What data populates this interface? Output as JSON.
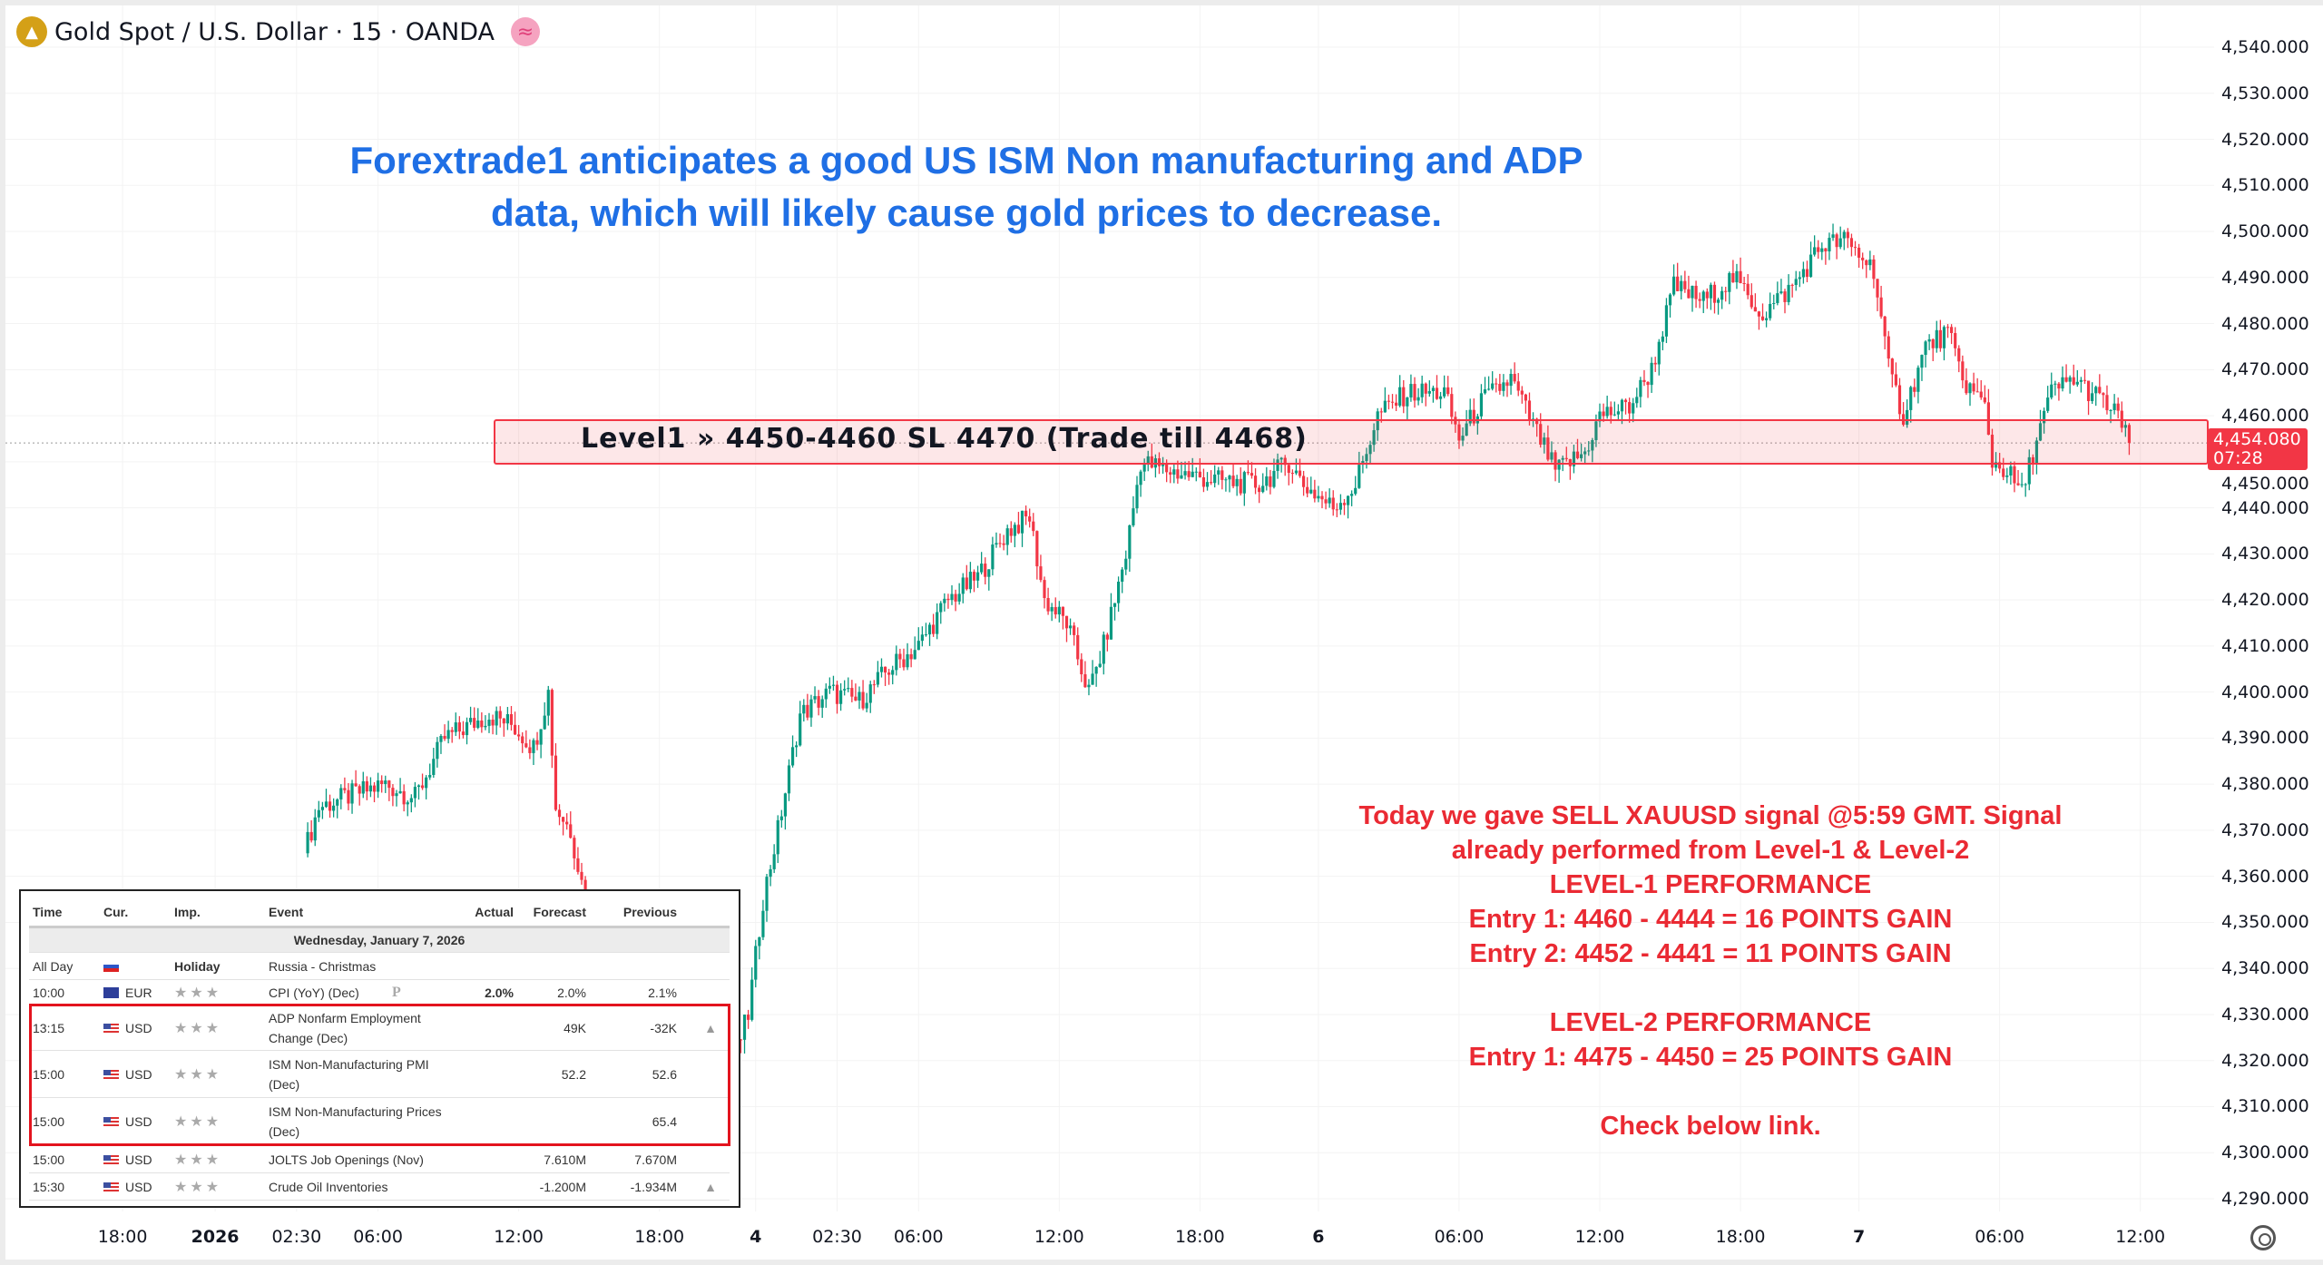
{
  "header": {
    "title": "Gold Spot / U.S. Dollar · 15 · OANDA",
    "icon": "gold-bars-icon",
    "indicator_icon": "approx-wave-icon"
  },
  "headline": [
    "Forextrade1 anticipates a good US ISM Non manufacturing and ADP",
    "data, which will likely cause gold prices to decrease."
  ],
  "level_box": {
    "label": "Level1 » 4450-4460 SL 4470 (Trade till 4468)",
    "low": 4450,
    "high": 4460,
    "color": "#f23645"
  },
  "current_price": {
    "price": "4,454.080",
    "countdown": "07:28",
    "value": 4454.08
  },
  "signal_text": [
    "Today we gave SELL XAUUSD signal @5:59 GMT. Signal",
    "already performed from Level-1 & Level-2",
    "LEVEL-1 PERFORMANCE",
    "Entry 1: 4460 - 4444 = 16 POINTS GAIN",
    "Entry 2: 4452 - 4441 = 11 POINTS GAIN",
    "",
    "LEVEL-2 PERFORMANCE",
    "Entry 1: 4475 - 4450 = 25 POINTS GAIN",
    "",
    "Check below link."
  ],
  "calendar": {
    "headers": [
      "Time",
      "Cur.",
      "Imp.",
      "Event",
      "Actual",
      "Forecast",
      "Previous"
    ],
    "date": "Wednesday, January 7, 2026",
    "rows": [
      {
        "time": "All Day",
        "cur": "",
        "flag": "ru",
        "imp": "Holiday",
        "event": "Russia - Christmas",
        "actual": "",
        "forecast": "",
        "previous": ""
      },
      {
        "time": "10:00",
        "cur": "EUR",
        "flag": "eu",
        "imp": "★★★",
        "event": "CPI (YoY) (Dec)",
        "tag": "P",
        "actual": "2.0%",
        "forecast": "2.0%",
        "previous": "2.1%"
      },
      {
        "time": "13:15",
        "cur": "USD",
        "flag": "us",
        "imp": "★★★",
        "event": "ADP Nonfarm Employment",
        "event2": "Change (Dec)",
        "actual": "",
        "forecast": "49K",
        "previous": "-32K",
        "bell": true
      },
      {
        "time": "15:00",
        "cur": "USD",
        "flag": "us",
        "imp": "★★★",
        "event": "ISM Non-Manufacturing PMI",
        "event2": "(Dec)",
        "actual": "",
        "forecast": "52.2",
        "previous": "52.6"
      },
      {
        "time": "15:00",
        "cur": "USD",
        "flag": "us",
        "imp": "★★★",
        "event": "ISM Non-Manufacturing Prices",
        "event2": "(Dec)",
        "actual": "",
        "forecast": "",
        "previous": "65.4"
      },
      {
        "time": "15:00",
        "cur": "USD",
        "flag": "us",
        "imp": "★★★",
        "event": "JOLTS Job Openings (Nov)",
        "actual": "",
        "forecast": "7.610M",
        "previous": "7.670M"
      },
      {
        "time": "15:30",
        "cur": "USD",
        "flag": "us",
        "imp": "★★★",
        "event": "Crude Oil Inventories",
        "actual": "",
        "forecast": "-1.200M",
        "previous": "-1.934M",
        "bell": true
      }
    ]
  },
  "chart_data": {
    "type": "candlestick",
    "symbol": "XAUUSD",
    "interval": "15",
    "ylim": [
      4285,
      4545
    ],
    "y_ticks": [
      "4,540.000",
      "4,530.000",
      "4,520.000",
      "4,510.000",
      "4,500.000",
      "4,490.000",
      "4,480.000",
      "4,470.000",
      "4,460.000",
      "4,450.000",
      "4,440.000",
      "4,430.000",
      "4,420.000",
      "4,410.000",
      "4,400.000",
      "4,390.000",
      "4,380.000",
      "4,370.000",
      "4,360.000",
      "4,350.000",
      "4,340.000",
      "4,330.000",
      "4,320.000",
      "4,310.000",
      "4,300.000",
      "4,290.000"
    ],
    "x_ticks": [
      {
        "label": "18:00",
        "bar": -49
      },
      {
        "label": "2026",
        "bar": -24,
        "bold": true
      },
      {
        "label": "02:30",
        "bar": -2
      },
      {
        "label": "06:00",
        "bar": 20
      },
      {
        "label": "12:00",
        "bar": 58
      },
      {
        "label": "18:00",
        "bar": 96
      },
      {
        "label": "4",
        "bar": 122,
        "bold": true
      },
      {
        "label": "02:30",
        "bar": 144
      },
      {
        "label": "06:00",
        "bar": 166
      },
      {
        "label": "12:00",
        "bar": 204
      },
      {
        "label": "18:00",
        "bar": 242
      },
      {
        "label": "6",
        "bar": 274,
        "bold": true
      },
      {
        "label": "06:00",
        "bar": 312
      },
      {
        "label": "12:00",
        "bar": 350
      },
      {
        "label": "18:00",
        "bar": 388
      },
      {
        "label": "7",
        "bar": 420,
        "bold": true
      },
      {
        "label": "06:00",
        "bar": 458
      },
      {
        "label": "12:00",
        "bar": 496
      }
    ],
    "close_path": [
      [
        0,
        4365
      ],
      [
        4,
        4375
      ],
      [
        14,
        4378
      ],
      [
        22,
        4380
      ],
      [
        30,
        4377
      ],
      [
        38,
        4390
      ],
      [
        50,
        4395
      ],
      [
        56,
        4393
      ],
      [
        62,
        4388
      ],
      [
        66,
        4400
      ],
      [
        68,
        4375
      ],
      [
        72,
        4370
      ],
      [
        76,
        4355
      ],
      [
        86,
        4340
      ],
      [
        102,
        4320
      ],
      [
        114,
        4315
      ],
      [
        120,
        4330
      ],
      [
        124,
        4355
      ],
      [
        128,
        4370
      ],
      [
        134,
        4395
      ],
      [
        142,
        4400
      ],
      [
        150,
        4398
      ],
      [
        158,
        4405
      ],
      [
        166,
        4410
      ],
      [
        174,
        4420
      ],
      [
        182,
        4425
      ],
      [
        190,
        4435
      ],
      [
        196,
        4438
      ],
      [
        200,
        4420
      ],
      [
        206,
        4415
      ],
      [
        212,
        4400
      ],
      [
        216,
        4410
      ],
      [
        222,
        4430
      ],
      [
        226,
        4450
      ],
      [
        234,
        4448
      ],
      [
        246,
        4446
      ],
      [
        258,
        4445
      ],
      [
        266,
        4450
      ],
      [
        270,
        4445
      ],
      [
        278,
        4440
      ],
      [
        284,
        4445
      ],
      [
        290,
        4460
      ],
      [
        298,
        4465
      ],
      [
        308,
        4465
      ],
      [
        312,
        4455
      ],
      [
        318,
        4463
      ],
      [
        326,
        4468
      ],
      [
        332,
        4458
      ],
      [
        338,
        4448
      ],
      [
        346,
        4452
      ],
      [
        350,
        4460
      ],
      [
        358,
        4462
      ],
      [
        364,
        4470
      ],
      [
        370,
        4488
      ],
      [
        378,
        4485
      ],
      [
        386,
        4490
      ],
      [
        394,
        4482
      ],
      [
        402,
        4488
      ],
      [
        410,
        4497
      ],
      [
        416,
        4498
      ],
      [
        424,
        4492
      ],
      [
        428,
        4470
      ],
      [
        432,
        4460
      ],
      [
        438,
        4475
      ],
      [
        444,
        4478
      ],
      [
        448,
        4468
      ],
      [
        454,
        4462
      ],
      [
        456,
        4450
      ],
      [
        460,
        4448
      ],
      [
        464,
        4443
      ],
      [
        468,
        4455
      ],
      [
        472,
        4465
      ],
      [
        478,
        4468
      ],
      [
        486,
        4463
      ],
      [
        492,
        4458
      ],
      [
        493,
        4454.08
      ]
    ],
    "up_color": "#089981",
    "down_color": "#f23645"
  }
}
